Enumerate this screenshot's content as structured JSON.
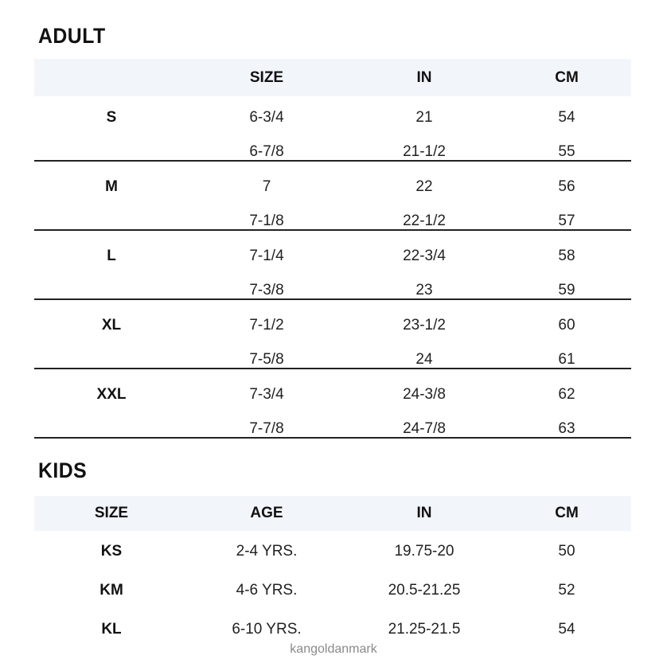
{
  "adult": {
    "title": "ADULT",
    "headers": [
      "",
      "SIZE",
      "IN",
      "CM"
    ],
    "groups": [
      {
        "label": "S",
        "rows": [
          [
            "6-3/4",
            "21",
            "54"
          ],
          [
            "6-7/8",
            "21-1/2",
            "55"
          ]
        ]
      },
      {
        "label": "M",
        "rows": [
          [
            "7",
            "22",
            "56"
          ],
          [
            "7-1/8",
            "22-1/2",
            "57"
          ]
        ]
      },
      {
        "label": "L",
        "rows": [
          [
            "7-1/4",
            "22-3/4",
            "58"
          ],
          [
            "7-3/8",
            "23",
            "59"
          ]
        ]
      },
      {
        "label": "XL",
        "rows": [
          [
            "7-1/2",
            "23-1/2",
            "60"
          ],
          [
            "7-5/8",
            "24",
            "61"
          ]
        ]
      },
      {
        "label": "XXL",
        "rows": [
          [
            "7-3/4",
            "24-3/8",
            "62"
          ],
          [
            "7-7/8",
            "24-7/8",
            "63"
          ]
        ]
      }
    ]
  },
  "kids": {
    "title": "KIDS",
    "headers": [
      "SIZE",
      "AGE",
      "IN",
      "CM"
    ],
    "rows": [
      [
        "KS",
        "2-4 YRS.",
        "19.75-20",
        "50"
      ],
      [
        "KM",
        "4-6 YRS.",
        "20.5-21.25",
        "52"
      ],
      [
        "KL",
        "6-10 YRS.",
        "21.25-21.5",
        "54"
      ]
    ]
  },
  "watermark": "kangoldanmark",
  "colors": {
    "header_band": "#f2f5f9",
    "rule": "#222222",
    "watermark": "#8a8a8a"
  }
}
